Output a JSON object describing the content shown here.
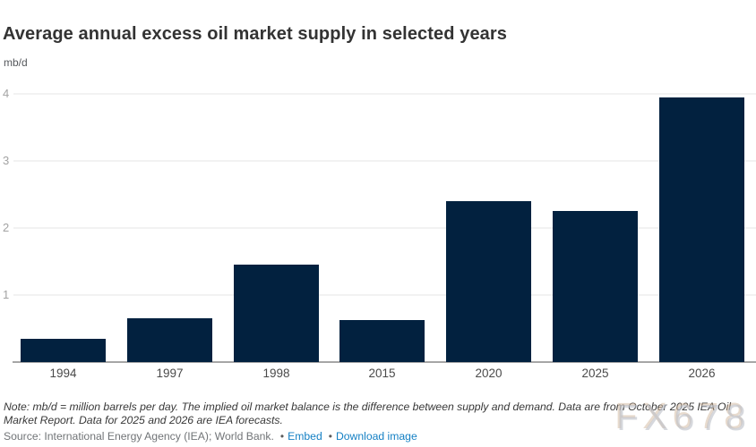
{
  "header": {
    "title": "Average annual excess oil market supply in selected years",
    "subtitle": "mb/d"
  },
  "chart_data": {
    "type": "bar",
    "title": "Average annual excess oil market supply in selected years",
    "ylabel": "mb/d",
    "xlabel": "",
    "categories": [
      "1994",
      "1997",
      "1998",
      "2015",
      "2020",
      "2025",
      "2026"
    ],
    "values": [
      0.35,
      0.65,
      1.45,
      0.62,
      2.4,
      2.26,
      3.95
    ],
    "ylim": [
      0,
      4
    ],
    "y_ticks": [
      1,
      2,
      3,
      4
    ],
    "grid": true,
    "legend": false,
    "bar_color": "#02213f",
    "gridline_color": "#f2f2f2",
    "axis_color": "#a6a6a6"
  },
  "footer": {
    "note": "Note: mb/d = million barrels per day. The implied oil market balance is the difference between supply and demand. Data are from October 2025 IEA Oil Market Report. Data for 2025 and 2026 are IEA forecasts.",
    "source": "Source: International Energy Agency (IEA); World Bank.",
    "bullet": "•",
    "links": [
      {
        "label": "Embed"
      },
      {
        "label": "Download image"
      }
    ],
    "link_color": "#1580c4"
  },
  "watermark": "FX678"
}
